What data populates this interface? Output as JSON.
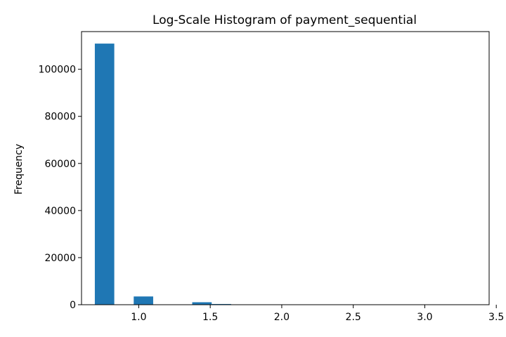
{
  "chart_data": {
    "type": "bar",
    "title": "Log-Scale Histogram of payment_sequential",
    "xlabel": "",
    "ylabel": "Frequency",
    "xlim": [
      0.6,
      3.45
    ],
    "ylim": [
      0,
      116000
    ],
    "xticks": [
      "1.0",
      "1.5",
      "2.0",
      "2.5",
      "3.0",
      "3.5"
    ],
    "xtick_values": [
      1.0,
      1.5,
      2.0,
      2.5,
      3.0,
      3.5
    ],
    "yticks": [
      "0",
      "20000",
      "40000",
      "60000",
      "80000",
      "100000"
    ],
    "ytick_values": [
      0,
      20000,
      40000,
      60000,
      80000,
      100000
    ],
    "bins": [
      {
        "x0": 0.693,
        "x1": 0.829,
        "value": 110900
      },
      {
        "x0": 0.965,
        "x1": 1.101,
        "value": 3500
      },
      {
        "x0": 1.374,
        "x1": 1.51,
        "value": 1050
      },
      {
        "x0": 1.51,
        "x1": 1.646,
        "value": 300
      },
      {
        "x0": 1.782,
        "x1": 1.918,
        "value": 130
      },
      {
        "x0": 1.918,
        "x1": 2.054,
        "value": 95
      },
      {
        "x0": 2.054,
        "x1": 2.19,
        "value": 75
      },
      {
        "x0": 2.19,
        "x1": 2.326,
        "value": 60
      },
      {
        "x0": 2.326,
        "x1": 2.462,
        "value": 45
      },
      {
        "x0": 2.462,
        "x1": 2.598,
        "value": 35
      },
      {
        "x0": 2.598,
        "x1": 2.734,
        "value": 30
      },
      {
        "x0": 2.734,
        "x1": 2.87,
        "value": 25
      },
      {
        "x0": 2.87,
        "x1": 3.006,
        "value": 20
      },
      {
        "x0": 3.006,
        "x1": 3.142,
        "value": 60
      },
      {
        "x0": 3.142,
        "x1": 3.278,
        "value": 10
      },
      {
        "x0": 3.278,
        "x1": 3.414,
        "value": 8
      }
    ],
    "bar_color": "#1f77b4",
    "grid": false,
    "legend": "none"
  }
}
